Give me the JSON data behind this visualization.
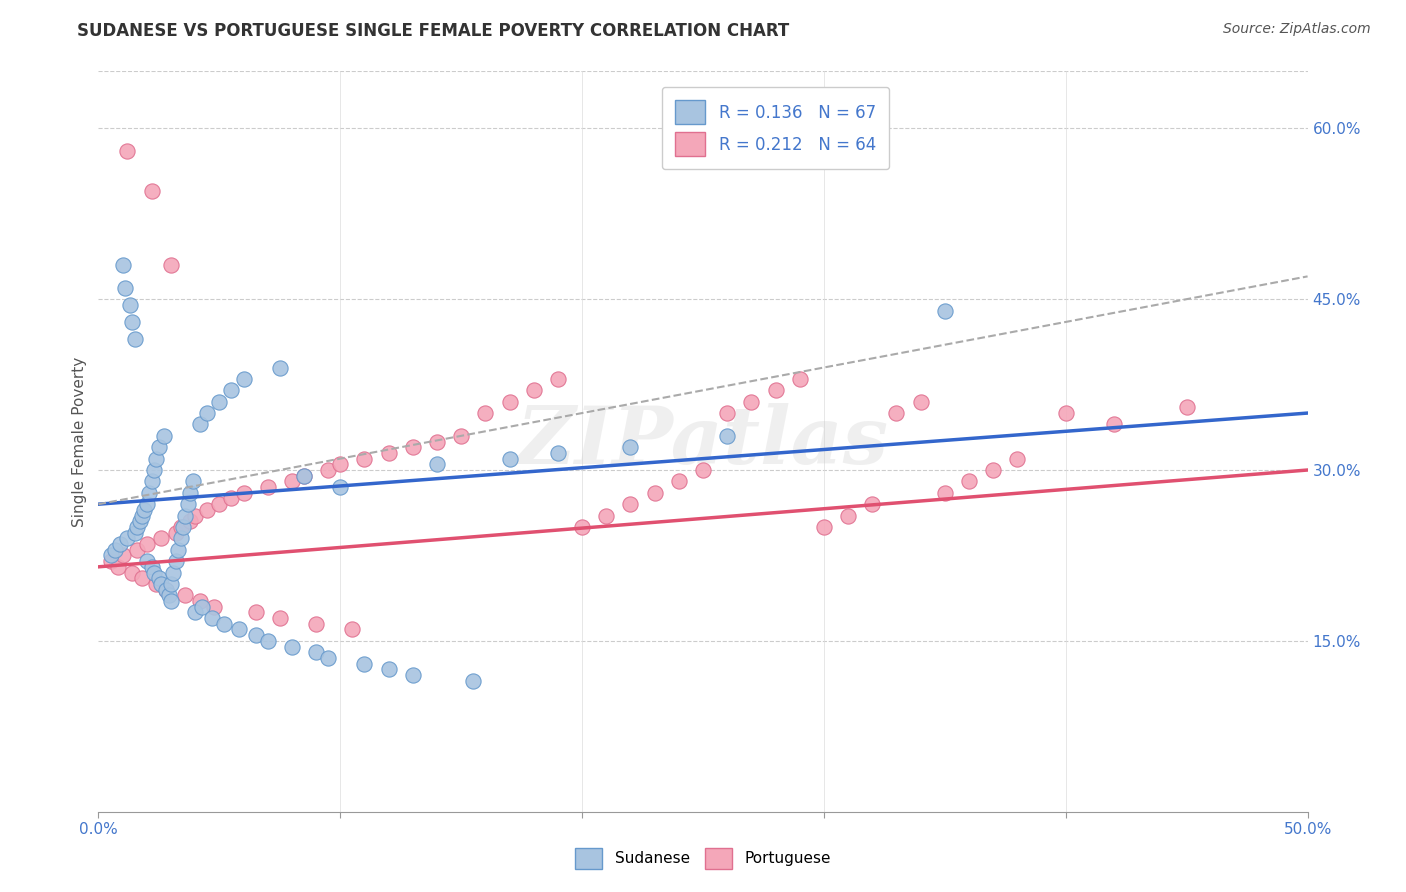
{
  "title": "SUDANESE VS PORTUGUESE SINGLE FEMALE POVERTY CORRELATION CHART",
  "source_text": "Source: ZipAtlas.com",
  "ylabel": "Single Female Poverty",
  "xlim": [
    0.0,
    0.5
  ],
  "ylim": [
    0.0,
    0.65
  ],
  "yticks": [
    0.15,
    0.3,
    0.45,
    0.6
  ],
  "yticklabels": [
    "15.0%",
    "30.0%",
    "45.0%",
    "60.0%"
  ],
  "sudanese_color": "#a8c4e0",
  "portuguese_color": "#f4a7b9",
  "sudanese_edge": "#6699cc",
  "portuguese_edge": "#e07090",
  "trend_blue": "#3366cc",
  "trend_pink": "#e05070",
  "trend_gray": "#aaaaaa",
  "R_sudanese": 0.136,
  "N_sudanese": 67,
  "R_portuguese": 0.212,
  "N_portuguese": 64,
  "legend_label_sudanese": "Sudanese",
  "legend_label_portuguese": "Portuguese",
  "watermark": "ZIPatlas",
  "background_color": "#ffffff",
  "grid_color": "#cccccc",
  "title_color": "#333333",
  "axis_label_color": "#555555",
  "tick_label_color": "#4477cc",
  "sudanese_x": [
    0.005,
    0.007,
    0.009,
    0.01,
    0.011,
    0.012,
    0.013,
    0.014,
    0.015,
    0.015,
    0.016,
    0.017,
    0.018,
    0.019,
    0.02,
    0.02,
    0.021,
    0.022,
    0.022,
    0.023,
    0.023,
    0.024,
    0.025,
    0.025,
    0.026,
    0.027,
    0.028,
    0.029,
    0.03,
    0.03,
    0.031,
    0.032,
    0.033,
    0.034,
    0.035,
    0.036,
    0.037,
    0.038,
    0.039,
    0.04,
    0.042,
    0.043,
    0.045,
    0.047,
    0.05,
    0.052,
    0.055,
    0.058,
    0.06,
    0.065,
    0.07,
    0.075,
    0.08,
    0.085,
    0.09,
    0.095,
    0.1,
    0.11,
    0.12,
    0.13,
    0.14,
    0.155,
    0.17,
    0.19,
    0.22,
    0.26,
    0.35
  ],
  "sudanese_y": [
    0.225,
    0.23,
    0.235,
    0.48,
    0.46,
    0.24,
    0.445,
    0.43,
    0.245,
    0.415,
    0.25,
    0.255,
    0.26,
    0.265,
    0.27,
    0.22,
    0.28,
    0.29,
    0.215,
    0.3,
    0.21,
    0.31,
    0.32,
    0.205,
    0.2,
    0.33,
    0.195,
    0.19,
    0.185,
    0.2,
    0.21,
    0.22,
    0.23,
    0.24,
    0.25,
    0.26,
    0.27,
    0.28,
    0.29,
    0.175,
    0.34,
    0.18,
    0.35,
    0.17,
    0.36,
    0.165,
    0.37,
    0.16,
    0.38,
    0.155,
    0.15,
    0.39,
    0.145,
    0.295,
    0.14,
    0.135,
    0.285,
    0.13,
    0.125,
    0.12,
    0.305,
    0.115,
    0.31,
    0.315,
    0.32,
    0.33,
    0.44
  ],
  "portuguese_x": [
    0.005,
    0.008,
    0.01,
    0.012,
    0.014,
    0.016,
    0.018,
    0.02,
    0.022,
    0.024,
    0.026,
    0.028,
    0.03,
    0.032,
    0.034,
    0.036,
    0.038,
    0.04,
    0.042,
    0.045,
    0.048,
    0.05,
    0.055,
    0.06,
    0.065,
    0.07,
    0.075,
    0.08,
    0.085,
    0.09,
    0.095,
    0.1,
    0.105,
    0.11,
    0.12,
    0.13,
    0.14,
    0.15,
    0.16,
    0.17,
    0.18,
    0.19,
    0.2,
    0.21,
    0.22,
    0.23,
    0.24,
    0.25,
    0.26,
    0.27,
    0.28,
    0.29,
    0.3,
    0.31,
    0.32,
    0.33,
    0.34,
    0.35,
    0.36,
    0.37,
    0.38,
    0.4,
    0.42,
    0.45
  ],
  "portuguese_y": [
    0.22,
    0.215,
    0.225,
    0.58,
    0.21,
    0.23,
    0.205,
    0.235,
    0.545,
    0.2,
    0.24,
    0.195,
    0.48,
    0.245,
    0.25,
    0.19,
    0.255,
    0.26,
    0.185,
    0.265,
    0.18,
    0.27,
    0.275,
    0.28,
    0.175,
    0.285,
    0.17,
    0.29,
    0.295,
    0.165,
    0.3,
    0.305,
    0.16,
    0.31,
    0.315,
    0.32,
    0.325,
    0.33,
    0.35,
    0.36,
    0.37,
    0.38,
    0.25,
    0.26,
    0.27,
    0.28,
    0.29,
    0.3,
    0.35,
    0.36,
    0.37,
    0.38,
    0.25,
    0.26,
    0.27,
    0.35,
    0.36,
    0.28,
    0.29,
    0.3,
    0.31,
    0.35,
    0.34,
    0.355
  ],
  "blue_trend_x0": 0.0,
  "blue_trend_y0": 0.27,
  "blue_trend_x1": 0.5,
  "blue_trend_y1": 0.35,
  "pink_trend_x0": 0.0,
  "pink_trend_y0": 0.215,
  "pink_trend_x1": 0.5,
  "pink_trend_y1": 0.3,
  "gray_trend_x0": 0.0,
  "gray_trend_y0": 0.27,
  "gray_trend_x1": 0.5,
  "gray_trend_y1": 0.47
}
